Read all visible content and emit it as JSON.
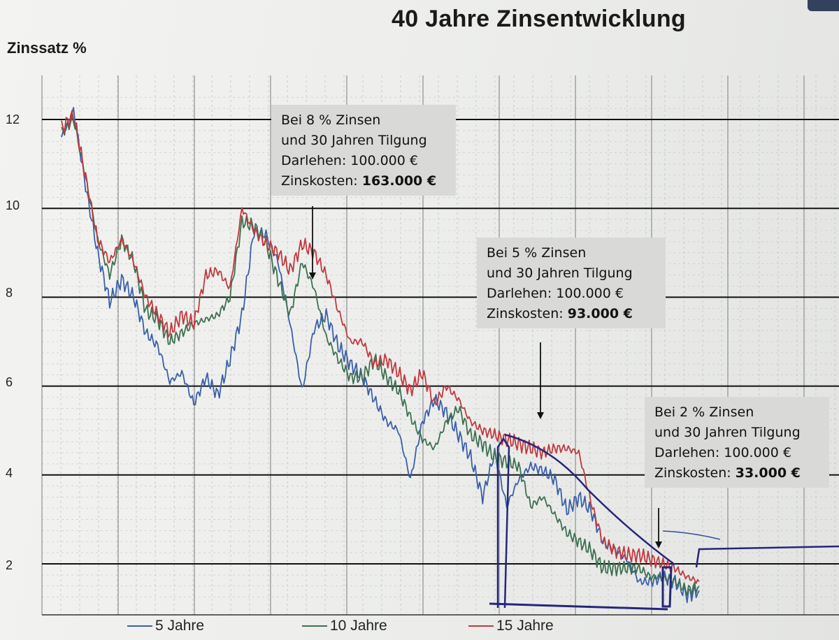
{
  "chart_data": {
    "type": "line",
    "title": "40 Jahre Zinsentwicklung",
    "ylabel": "Zinssatz %",
    "xlabel": "",
    "ylim": [
      1.1,
      12.8
    ],
    "yticks": [
      2,
      4,
      6,
      8,
      10,
      12
    ],
    "grid": true,
    "legend_position": "bottom",
    "series": [
      {
        "name": "5 Jahre",
        "color": "#3a5fa8",
        "values": [
          11.6,
          12.2,
          10.5,
          9.0,
          7.9,
          8.4,
          8.0,
          7.2,
          6.9,
          6.1,
          6.3,
          5.6,
          6.2,
          5.8,
          6.6,
          7.6,
          9.5,
          9.4,
          8.8,
          7.4,
          5.9,
          7.3,
          7.6,
          6.9,
          6.5,
          6.2,
          5.7,
          5.2,
          5.0,
          3.9,
          5.2,
          5.7,
          5.4,
          4.9,
          4.4,
          3.5,
          4.5,
          3.3,
          3.9,
          4.2,
          4.1,
          3.9,
          3.2,
          3.5,
          3.2,
          2.5,
          2.3,
          2.1,
          1.6,
          1.6,
          1.7,
          1.6,
          1.3,
          1.4
        ]
      },
      {
        "name": "10 Jahre",
        "color": "#3d7050",
        "values": [
          11.7,
          12.0,
          10.7,
          9.3,
          8.5,
          9.3,
          8.8,
          7.7,
          7.5,
          7.0,
          7.2,
          7.4,
          7.5,
          7.6,
          8.0,
          9.7,
          9.6,
          9.2,
          8.4,
          7.6,
          8.8,
          8.2,
          7.1,
          6.6,
          6.2,
          6.2,
          6.6,
          6.2,
          5.9,
          5.3,
          4.8,
          4.6,
          5.2,
          5.5,
          4.9,
          4.7,
          4.4,
          4.3,
          4.2,
          3.3,
          3.5,
          3.1,
          2.7,
          2.5,
          2.3,
          1.9,
          1.9,
          1.9,
          1.9,
          1.7,
          1.7,
          1.6,
          1.4,
          1.5
        ]
      },
      {
        "name": "15 Jahre",
        "color": "#c0393e",
        "values": [
          11.8,
          12.1,
          10.7,
          9.3,
          8.8,
          9.3,
          8.8,
          8.0,
          7.6,
          7.2,
          7.6,
          7.4,
          8.5,
          8.6,
          8.2,
          10.0,
          9.5,
          9.2,
          9.0,
          8.6,
          9.2,
          9.0,
          8.5,
          7.7,
          7.0,
          7.0,
          6.5,
          6.6,
          6.3,
          5.9,
          6.3,
          5.6,
          6.0,
          5.7,
          5.2,
          5.0,
          4.9,
          4.8,
          4.7,
          4.6,
          4.5,
          4.6,
          4.6,
          4.5,
          3.4,
          2.5,
          2.3,
          2.2,
          2.2,
          2.1,
          2.0,
          1.9,
          1.7,
          1.6
        ]
      }
    ]
  },
  "annotations": [
    {
      "lines": [
        "Bei 8 % Zinsen",
        "und 30 Jahren Tilgung",
        "Darlehen: 100.000 €"
      ],
      "cost_label": "Zinskosten:",
      "cost_value": "163.000 €"
    },
    {
      "lines": [
        "Bei 5 % Zinsen",
        "und 30 Jahren Tilgung",
        "Darlehen: 100.000 €"
      ],
      "cost_label": "Zinskosten:",
      "cost_value": "93.000 €"
    },
    {
      "lines": [
        "Bei 2 % Zinsen",
        "und 30 Jahren Tilgung",
        "Darlehen: 100.000 €"
      ],
      "cost_label": "Zinskosten:",
      "cost_value": "33.000 €"
    }
  ]
}
